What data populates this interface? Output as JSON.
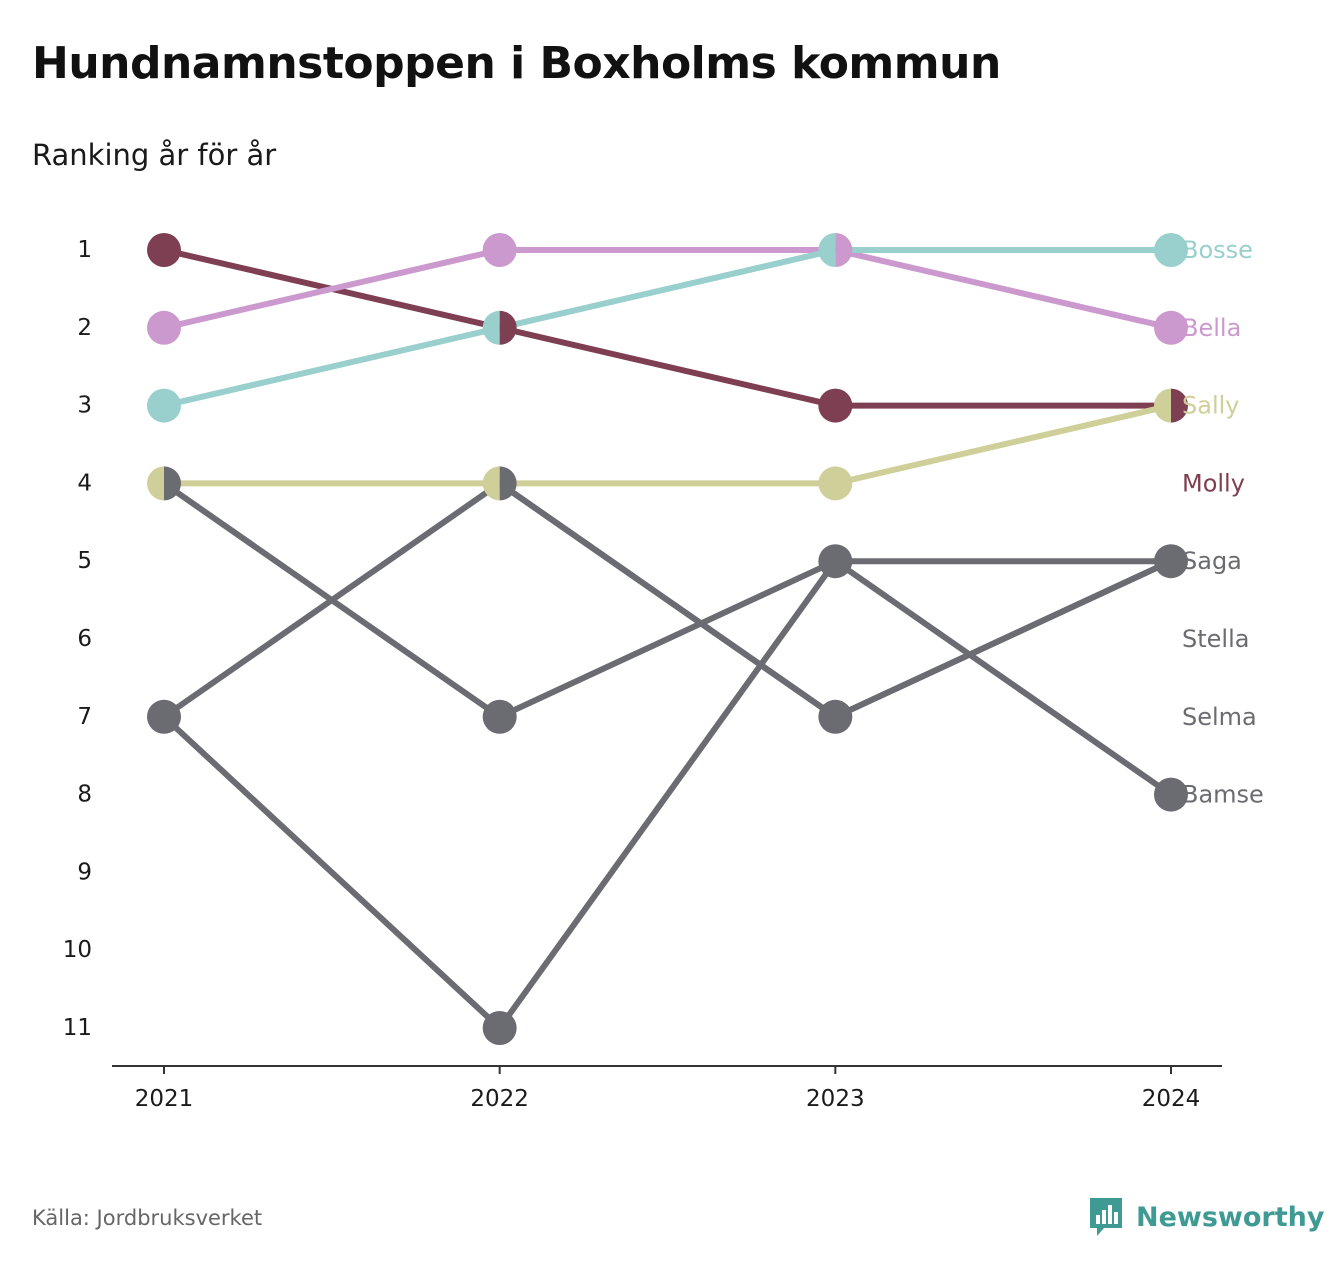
{
  "title": "Hundnamnstoppen i Boxholms kommun",
  "subtitle": "Ranking år för år",
  "source": "Källa: Jordbruksverket",
  "brand": {
    "name": "Newsworthy",
    "icon": "bar-chart-speech-bubble-icon"
  },
  "colors": {
    "Bosse": "#99cfcd",
    "Bella": "#cc99cf",
    "Sally": "#cfcf99",
    "Molly": "#7f3f52",
    "grey": "#6b6b72",
    "axis": "#333333",
    "brand": "#3f9a94"
  },
  "chart_data": {
    "type": "line",
    "x": [
      "2021",
      "2022",
      "2023",
      "2024"
    ],
    "y_ticks": [
      "1",
      "2",
      "3",
      "4",
      "5",
      "6",
      "7",
      "8",
      "9",
      "10",
      "11"
    ],
    "ylim": [
      1,
      11
    ],
    "y_reversed": true,
    "grid": false,
    "legend": "labels at line ends",
    "series": [
      {
        "name": "Molly",
        "values": [
          1,
          2,
          3,
          3
        ],
        "color": "#7f3f52"
      },
      {
        "name": "Bella",
        "values": [
          2,
          1,
          1,
          2
        ],
        "color": "#cc99cf"
      },
      {
        "name": "Bosse",
        "values": [
          3,
          2,
          1,
          1
        ],
        "color": "#99cfcd"
      },
      {
        "name": "Sally",
        "values": [
          4,
          4,
          4,
          3
        ],
        "color": "#cfcf99"
      },
      {
        "name": "Saga",
        "values": [
          7,
          4,
          7,
          5
        ],
        "color": "#6b6b72"
      },
      {
        "name": "Bamse",
        "values": [
          4,
          7,
          5,
          8
        ],
        "color": "#6b6b72"
      },
      {
        "name": "Stella",
        "values": [
          7,
          11,
          5,
          5
        ],
        "color": "#6b6b72"
      },
      {
        "name": "Selma",
        "values": [
          null,
          4,
          7,
          5
        ],
        "color": "#6b6b72"
      }
    ],
    "end_labels": [
      {
        "name": "Bosse",
        "rank": 1,
        "color": "#99cfcd"
      },
      {
        "name": "Bella",
        "rank": 2,
        "color": "#cc99cf"
      },
      {
        "name": "Sally",
        "rank": 3,
        "color": "#cfcf99"
      },
      {
        "name": "Molly",
        "rank": 4,
        "color": "#7f3f52"
      },
      {
        "name": "Saga",
        "rank": 5,
        "color": "#6b6b72"
      },
      {
        "name": "Stella",
        "rank": 6,
        "color": "#6b6b72"
      },
      {
        "name": "Selma",
        "rank": 7,
        "color": "#6b6b72"
      },
      {
        "name": "Bamse",
        "rank": 8,
        "color": "#6b6b72"
      }
    ]
  }
}
